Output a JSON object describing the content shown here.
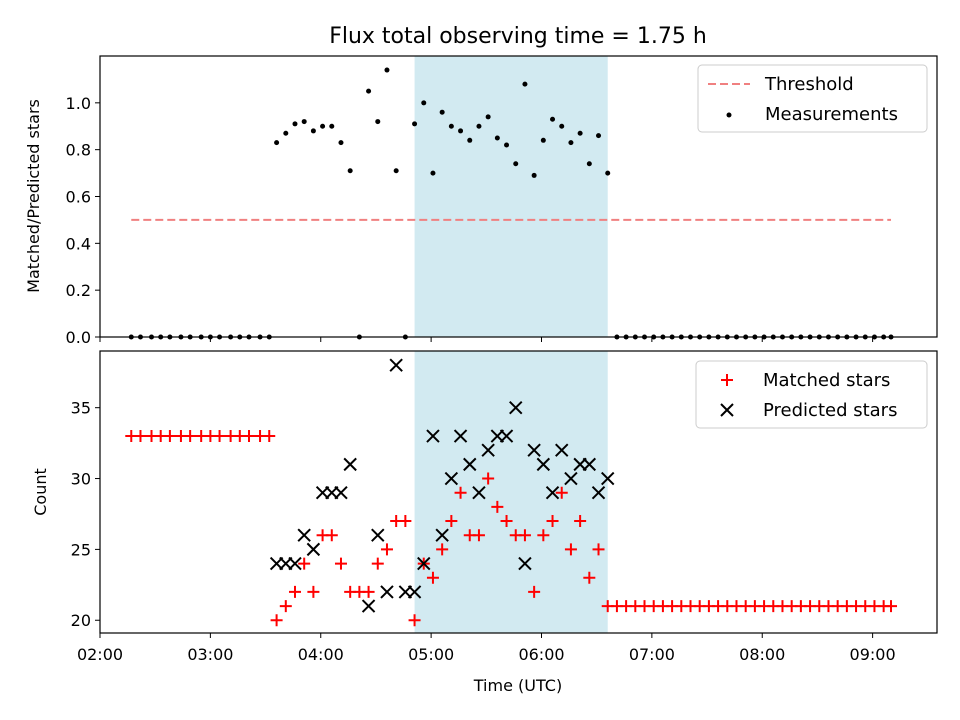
{
  "figure": {
    "title": "Flux total observing time = 1.75 h",
    "xlabel": "Time (UTC)"
  },
  "chart_data": [
    {
      "type": "scatter",
      "ylabel": "Matched/Predicted stars",
      "xlim": [
        "02:00",
        "09:35"
      ],
      "ylim": [
        0,
        1.2
      ],
      "yticks": [
        "0.0",
        "0.2",
        "0.4",
        "0.6",
        "0.8",
        "1.0"
      ],
      "xticks": [
        "02:00",
        "03:00",
        "04:00",
        "05:00",
        "06:00",
        "07:00",
        "08:00",
        "09:00"
      ],
      "highlight_span": {
        "start": "04:51",
        "end": "06:36",
        "color": "#add8e6"
      },
      "threshold": {
        "name": "Threshold",
        "value": 0.5,
        "x_start": "02:17",
        "x_end": "09:10",
        "color": "#f08080"
      },
      "series": [
        {
          "name": "Measurements",
          "color": "#000000",
          "x": [
            "02:17",
            "02:22",
            "02:28",
            "02:33",
            "02:38",
            "02:44",
            "02:49",
            "02:55",
            "03:00",
            "03:05",
            "03:11",
            "03:16",
            "03:21",
            "03:27",
            "03:32",
            "03:36",
            "03:41",
            "03:46",
            "03:51",
            "03:56",
            "04:01",
            "04:06",
            "04:11",
            "04:16",
            "04:21",
            "04:26",
            "04:31",
            "04:36",
            "04:41",
            "04:46",
            "04:51",
            "04:56",
            "05:01",
            "05:06",
            "05:11",
            "05:16",
            "05:21",
            "05:26",
            "05:31",
            "05:36",
            "05:41",
            "05:46",
            "05:51",
            "05:56",
            "06:01",
            "06:06",
            "06:11",
            "06:16",
            "06:21",
            "06:26",
            "06:31",
            "06:36",
            "06:41",
            "06:46",
            "06:51",
            "06:56",
            "07:01",
            "07:06",
            "07:11",
            "07:16",
            "07:21",
            "07:26",
            "07:31",
            "07:36",
            "07:41",
            "07:46",
            "07:51",
            "07:56",
            "08:01",
            "08:06",
            "08:11",
            "08:16",
            "08:21",
            "08:26",
            "08:31",
            "08:36",
            "08:41",
            "08:46",
            "08:51",
            "08:56",
            "09:01",
            "09:06",
            "09:10"
          ],
          "y": [
            0,
            0,
            0,
            0,
            0,
            0,
            0,
            0,
            0,
            0,
            0,
            0,
            0,
            0,
            0,
            0.83,
            0.87,
            0.91,
            0.92,
            0.88,
            0.9,
            0.9,
            0.83,
            0.71,
            0.0,
            1.05,
            0.92,
            1.14,
            0.71,
            0.0,
            0.91,
            1.0,
            0.7,
            0.96,
            0.9,
            0.88,
            0.84,
            0.9,
            0.94,
            0.85,
            0.82,
            0.74,
            1.08,
            0.69,
            0.84,
            0.93,
            0.9,
            0.83,
            0.87,
            0.74,
            0.86,
            0.7,
            0,
            0,
            0,
            0,
            0,
            0,
            0,
            0,
            0,
            0,
            0,
            0,
            0,
            0,
            0,
            0,
            0,
            0,
            0,
            0,
            0,
            0,
            0,
            0,
            0,
            0,
            0,
            0,
            0,
            0,
            0
          ]
        }
      ],
      "legend": {
        "position": "upper right",
        "entries": [
          "Threshold",
          "Measurements"
        ]
      }
    },
    {
      "type": "scatter",
      "ylabel": "Count",
      "xlim": [
        "02:00",
        "09:35"
      ],
      "ylim": [
        19.1,
        39.0
      ],
      "yticks": [
        "20",
        "25",
        "30",
        "35"
      ],
      "xticks": [
        "02:00",
        "03:00",
        "04:00",
        "05:00",
        "06:00",
        "07:00",
        "08:00",
        "09:00"
      ],
      "highlight_span": {
        "start": "04:51",
        "end": "06:36",
        "color": "#add8e6"
      },
      "series": [
        {
          "name": "Matched stars",
          "color": "#ff0000",
          "marker": "plus",
          "x": [
            "02:17",
            "02:22",
            "02:28",
            "02:33",
            "02:38",
            "02:44",
            "02:49",
            "02:55",
            "03:00",
            "03:05",
            "03:11",
            "03:16",
            "03:21",
            "03:27",
            "03:32",
            "03:36",
            "03:41",
            "03:46",
            "03:51",
            "03:56",
            "04:01",
            "04:06",
            "04:11",
            "04:16",
            "04:21",
            "04:26",
            "04:31",
            "04:36",
            "04:41",
            "04:46",
            "04:51",
            "04:56",
            "05:01",
            "05:06",
            "05:11",
            "05:16",
            "05:21",
            "05:26",
            "05:31",
            "05:36",
            "05:41",
            "05:46",
            "05:51",
            "05:56",
            "06:01",
            "06:06",
            "06:11",
            "06:16",
            "06:21",
            "06:26",
            "06:31",
            "06:36",
            "06:41",
            "06:46",
            "06:51",
            "06:56",
            "07:01",
            "07:06",
            "07:11",
            "07:16",
            "07:21",
            "07:26",
            "07:31",
            "07:36",
            "07:41",
            "07:46",
            "07:51",
            "07:56",
            "08:01",
            "08:06",
            "08:11",
            "08:16",
            "08:21",
            "08:26",
            "08:31",
            "08:36",
            "08:41",
            "08:46",
            "08:51",
            "08:56",
            "09:01",
            "09:06",
            "09:10"
          ],
          "y": [
            33,
            33,
            33,
            33,
            33,
            33,
            33,
            33,
            33,
            33,
            33,
            33,
            33,
            33,
            33,
            20,
            21,
            22,
            24,
            22,
            26,
            26,
            24,
            22,
            22,
            22,
            24,
            25,
            27,
            27,
            20,
            24,
            23,
            25,
            27,
            29,
            26,
            26,
            30,
            28,
            27,
            26,
            26,
            22,
            26,
            27,
            29,
            25,
            27,
            23,
            25,
            21,
            21,
            21,
            21,
            21,
            21,
            21,
            21,
            21,
            21,
            21,
            21,
            21,
            21,
            21,
            21,
            21,
            21,
            21,
            21,
            21,
            21,
            21,
            21,
            21,
            21,
            21,
            21,
            21,
            21,
            21,
            21
          ]
        },
        {
          "name": "Predicted stars",
          "color": "#000000",
          "marker": "x",
          "x": [
            "03:36",
            "03:41",
            "03:46",
            "03:51",
            "03:56",
            "04:01",
            "04:06",
            "04:11",
            "04:16",
            "04:26",
            "04:31",
            "04:36",
            "04:41",
            "04:46",
            "04:51",
            "04:56",
            "05:01",
            "05:06",
            "05:11",
            "05:16",
            "05:21",
            "05:26",
            "05:31",
            "05:36",
            "05:41",
            "05:46",
            "05:51",
            "05:56",
            "06:01",
            "06:06",
            "06:11",
            "06:16",
            "06:21",
            "06:26",
            "06:31",
            "06:36"
          ],
          "y": [
            24,
            24,
            24,
            26,
            25,
            29,
            29,
            29,
            31,
            21,
            26,
            22,
            38,
            22,
            22,
            24,
            33,
            26,
            30,
            33,
            31,
            29,
            32,
            33,
            33,
            35,
            24,
            32,
            31,
            29,
            32,
            30,
            31,
            31,
            29,
            30
          ]
        }
      ],
      "legend": {
        "position": "upper right",
        "entries": [
          "Matched stars",
          "Predicted stars"
        ]
      }
    }
  ]
}
